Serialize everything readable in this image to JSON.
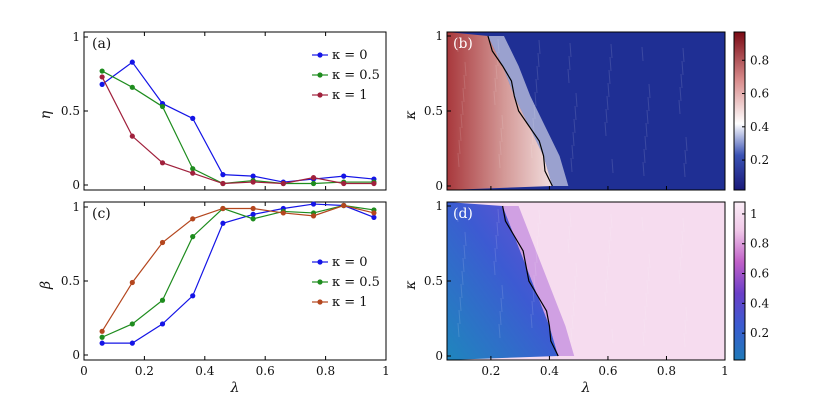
{
  "chart_data": [
    {
      "id": "a",
      "type": "line",
      "panel_label": "(a)",
      "ylabel": "η",
      "xlabel": "",
      "xlim": [
        0,
        1
      ],
      "ylim": [
        0,
        1
      ],
      "yticks": [
        "0",
        "0.5",
        "1"
      ],
      "xticks": [],
      "legend_position": "top-right",
      "x": [
        0.06,
        0.16,
        0.26,
        0.36,
        0.46,
        0.56,
        0.66,
        0.76,
        0.86,
        0.96
      ],
      "series": [
        {
          "name": "κ = 0",
          "color": "#1414e6",
          "values": [
            0.68,
            0.83,
            0.55,
            0.45,
            0.07,
            0.06,
            0.02,
            0.04,
            0.06,
            0.04
          ]
        },
        {
          "name": "κ = 0.5",
          "color": "#1e8c1e",
          "values": [
            0.77,
            0.66,
            0.53,
            0.11,
            0.01,
            0.03,
            0.01,
            0.01,
            0.02,
            0.02
          ]
        },
        {
          "name": "κ = 1",
          "color": "#a0203c",
          "values": [
            0.73,
            0.33,
            0.15,
            0.08,
            0.01,
            0.02,
            0.01,
            0.05,
            0.01,
            0.01
          ]
        }
      ]
    },
    {
      "id": "b",
      "type": "heatmap",
      "panel_label": "(b)",
      "ylabel": "κ",
      "xlabel": "",
      "xlim": [
        0.05,
        1
      ],
      "ylim": [
        0,
        1
      ],
      "yticks": [
        "0",
        "0.5",
        "1"
      ],
      "colorbar_ticks": [
        "0.2",
        "0.4",
        "0.6",
        "0.8"
      ],
      "colorbar_range": [
        0.02,
        0.97
      ],
      "colormap": [
        "#1a1a7a",
        "#3a52b4",
        "#ffffff",
        "#d88a8a",
        "#7a0a14"
      ],
      "boundary_lambda_at_kappa": [
        [
          0,
          0.41
        ],
        [
          0.2,
          0.38
        ],
        [
          0.4,
          0.33
        ],
        [
          0.6,
          0.28
        ],
        [
          0.8,
          0.24
        ],
        [
          1.0,
          0.19
        ]
      ]
    },
    {
      "id": "c",
      "type": "line",
      "panel_label": "(c)",
      "ylabel": "β",
      "xlabel": "λ",
      "xlim": [
        0,
        1
      ],
      "ylim": [
        0,
        1
      ],
      "yticks": [
        "0",
        "0.5",
        "1"
      ],
      "xticks": [
        "0",
        "0.2",
        "0.4",
        "0.6",
        "0.8",
        "1"
      ],
      "legend_position": "bottom-right",
      "x": [
        0.06,
        0.16,
        0.26,
        0.36,
        0.46,
        0.56,
        0.66,
        0.76,
        0.86,
        0.96
      ],
      "series": [
        {
          "name": "κ = 0",
          "color": "#1414e6",
          "values": [
            0.08,
            0.08,
            0.21,
            0.4,
            0.89,
            0.95,
            0.99,
            1.02,
            1.01,
            0.93
          ]
        },
        {
          "name": "κ = 0.5",
          "color": "#1e8c1e",
          "values": [
            0.12,
            0.21,
            0.37,
            0.8,
            0.99,
            0.92,
            0.97,
            0.96,
            1.01,
            0.98
          ]
        },
        {
          "name": "κ = 1",
          "color": "#b4461e",
          "values": [
            0.16,
            0.49,
            0.76,
            0.92,
            0.99,
            0.99,
            0.96,
            0.94,
            1.01,
            0.96
          ]
        }
      ]
    },
    {
      "id": "d",
      "type": "heatmap",
      "panel_label": "(d)",
      "ylabel": "κ",
      "xlabel": "λ",
      "xlim": [
        0.05,
        1
      ],
      "ylim": [
        0,
        1
      ],
      "yticks": [
        "0",
        "0.5",
        "1"
      ],
      "xticks": [
        "0.2",
        "0.4",
        "0.6",
        "0.8",
        "1"
      ],
      "colorbar_ticks": [
        "0.2",
        "0.4",
        "0.6",
        "0.8",
        "1"
      ],
      "colorbar_range": [
        0.02,
        1.08
      ],
      "colormap": [
        "#1f7ab8",
        "#3b5bd0",
        "#6a3fc8",
        "#c060c8",
        "#f0c8e8",
        "#fbeef7"
      ],
      "boundary_lambda_at_kappa": [
        [
          0,
          0.43
        ],
        [
          0.2,
          0.4
        ],
        [
          0.4,
          0.36
        ],
        [
          0.6,
          0.32
        ],
        [
          0.8,
          0.28
        ],
        [
          1.0,
          0.24
        ]
      ]
    }
  ]
}
